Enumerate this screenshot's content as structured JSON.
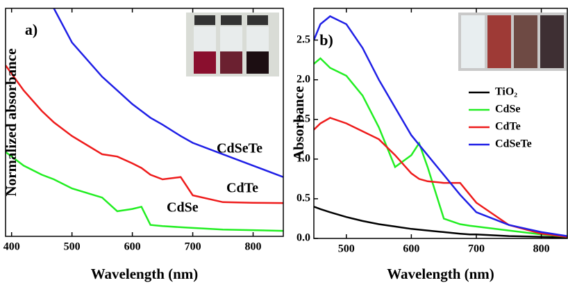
{
  "chart_data": [
    {
      "type": "line",
      "panel_label": "a)",
      "xlabel": "Wavelength (nm)",
      "ylabel": "Normalized absorbance",
      "x": [
        390,
        420,
        450,
        470,
        500,
        550,
        575,
        600,
        615,
        630,
        650,
        680,
        700,
        750,
        800,
        850
      ],
      "series": [
        {
          "name": "CdSeTe",
          "color": "#1f1fe6",
          "values": [
            null,
            null,
            null,
            1.0,
            0.85,
            0.7,
            0.64,
            0.58,
            0.55,
            0.52,
            0.49,
            0.44,
            0.41,
            0.36,
            0.31,
            0.26
          ]
        },
        {
          "name": "CdTe",
          "color": "#ee1b1b",
          "values": [
            0.75,
            0.64,
            0.55,
            0.5,
            0.44,
            0.36,
            0.35,
            0.32,
            0.3,
            0.27,
            0.25,
            0.26,
            0.18,
            0.15,
            0.147,
            0.146
          ]
        },
        {
          "name": "CdSe",
          "color": "#22ee22",
          "values": [
            0.37,
            0.31,
            0.27,
            0.25,
            0.21,
            0.17,
            0.11,
            0.12,
            0.13,
            0.05,
            0.045,
            0.04,
            0.037,
            0.03,
            0.027,
            0.024
          ]
        }
      ],
      "xlim": [
        390,
        850
      ],
      "xticks": [
        400,
        500,
        600,
        700,
        800
      ],
      "ylim": [
        0,
        1
      ],
      "legend": false
    },
    {
      "type": "line",
      "panel_label": "b)",
      "xlabel": "Wavelength (nm)",
      "ylabel": "Absorbance",
      "x": [
        450,
        460,
        475,
        500,
        525,
        550,
        575,
        600,
        612,
        625,
        650,
        675,
        690,
        700,
        750,
        800,
        840
      ],
      "series": [
        {
          "name": "TiO₂",
          "color": "#000000",
          "values": [
            0.4,
            0.37,
            0.33,
            0.27,
            0.22,
            0.18,
            0.15,
            0.12,
            0.11,
            0.1,
            0.08,
            0.06,
            0.05,
            0.05,
            0.03,
            0.02,
            0.01
          ]
        },
        {
          "name": "CdSe",
          "color": "#22ee22",
          "values": [
            2.2,
            2.27,
            2.15,
            2.05,
            1.8,
            1.4,
            0.9,
            1.05,
            1.2,
            0.9,
            0.25,
            0.18,
            0.16,
            0.15,
            0.1,
            0.05,
            0.02
          ]
        },
        {
          "name": "CdTe",
          "color": "#ee1b1b",
          "values": [
            1.37,
            1.45,
            1.52,
            1.45,
            1.35,
            1.25,
            1.05,
            0.82,
            0.75,
            0.72,
            0.7,
            0.7,
            0.55,
            0.45,
            0.17,
            0.06,
            0.02
          ]
        },
        {
          "name": "CdSeTe",
          "color": "#1f1fe6",
          "values": [
            2.5,
            2.7,
            2.8,
            2.7,
            2.4,
            2.0,
            1.65,
            1.3,
            1.18,
            1.05,
            0.8,
            0.55,
            0.42,
            0.33,
            0.17,
            0.08,
            0.03
          ]
        }
      ],
      "xlim": [
        450,
        840
      ],
      "xticks": [
        500,
        600,
        700,
        800
      ],
      "ylim": [
        0,
        2.9
      ],
      "yticks": [
        {
          "value": 0,
          "label": "0.0"
        },
        0.5,
        {
          "value": 1,
          "label": "1.0"
        },
        1.5,
        {
          "value": 2,
          "label": "2.0"
        },
        2.5
      ],
      "legend": true
    }
  ]
}
